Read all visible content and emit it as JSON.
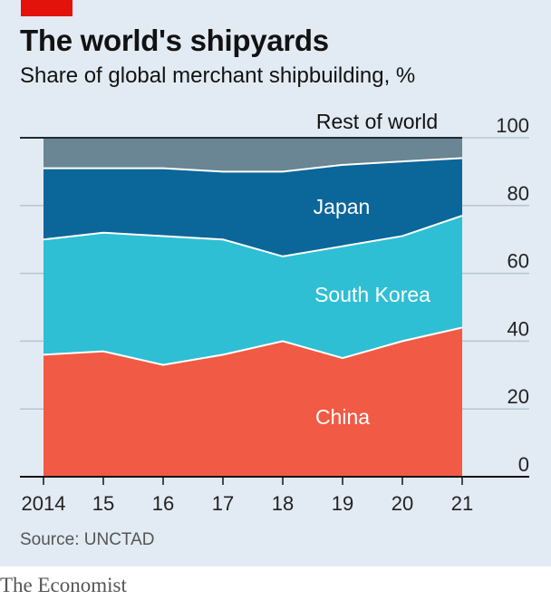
{
  "title": "The world's shipyards",
  "subtitle": "Share of global merchant shipbuilding, %",
  "source": "Source: UNCTAD",
  "brand": "The Economist",
  "colors": {
    "china": "#f15a44",
    "south_korea": "#2fbfd4",
    "japan": "#0b669a",
    "rest_of_world": "#6a8593",
    "background": "#e2ebf3",
    "brand_red": "#e3120b"
  },
  "chart_data": {
    "type": "area",
    "stacked": true,
    "x": [
      "2014",
      "15",
      "16",
      "17",
      "18",
      "19",
      "20",
      "21"
    ],
    "ylim": [
      0,
      100
    ],
    "yticks": [
      "0",
      "20",
      "40",
      "60",
      "80",
      "100"
    ],
    "y_axis_side": "right",
    "grid": true,
    "series": [
      {
        "name": "China",
        "key": "china",
        "values": [
          36,
          37,
          33,
          36,
          40,
          35,
          40,
          44
        ]
      },
      {
        "name": "South Korea",
        "key": "south_korea",
        "values": [
          34,
          35,
          38,
          34,
          25,
          33,
          31,
          33
        ]
      },
      {
        "name": "Japan",
        "key": "japan",
        "values": [
          21,
          19,
          20,
          20,
          25,
          24,
          22,
          17
        ]
      },
      {
        "name": "Rest of world",
        "key": "rest_of_world",
        "values": [
          9,
          9,
          9,
          10,
          10,
          8,
          7,
          6
        ]
      }
    ]
  }
}
